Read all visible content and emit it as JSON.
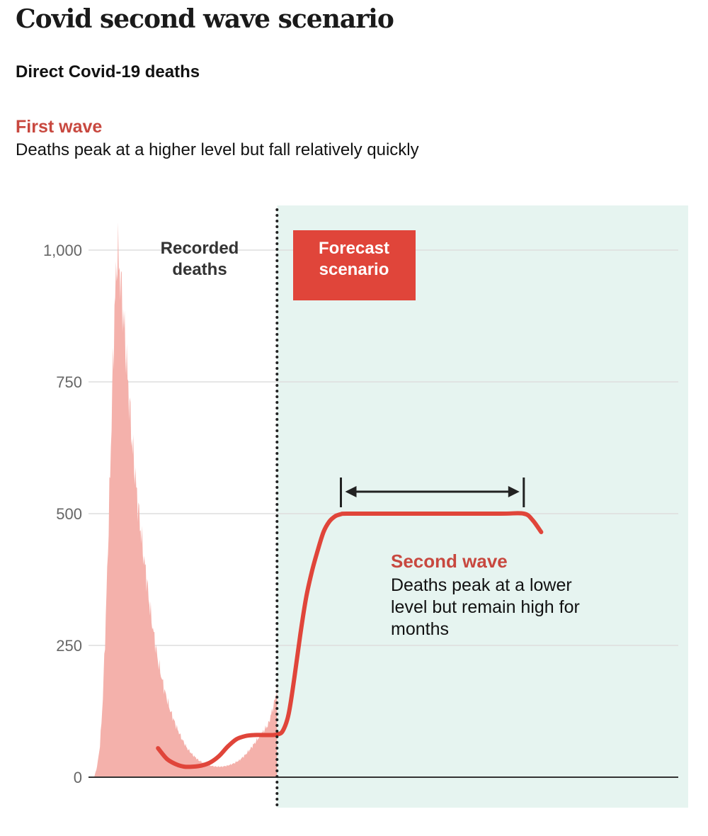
{
  "header": {
    "title": "Covid second wave scenario",
    "subtitle": "Direct Covid-19 deaths"
  },
  "first_wave": {
    "label": "First wave",
    "text": "Deaths peak at a higher level but fall relatively quickly"
  },
  "annotations": {
    "recorded": [
      "Recorded",
      "deaths"
    ],
    "forecast": [
      "Forecast",
      "scenario"
    ],
    "second_wave_label": "Second wave",
    "second_wave_text": [
      "Deaths peak at a lower",
      "level but remain high for",
      "months"
    ]
  },
  "colors": {
    "recorded_fill": "#f4b1ab",
    "forecast_line": "#e0453a",
    "forecast_box": "#e0453a",
    "forecast_bg": "#e6f4f0",
    "second_wave_label": "#c8483f",
    "gridline": "#dddddd",
    "axis": "#333333"
  },
  "chart_data": {
    "type": "area",
    "title": "Direct Covid-19 deaths",
    "ylim": [
      0,
      1000
    ],
    "y_ticks": [
      0,
      250,
      500,
      750,
      1000
    ],
    "y_tick_labels": [
      "0",
      "250",
      "500",
      "750",
      "1,000"
    ],
    "grid": true,
    "x_units": "days since start of record (x axis unlabeled)",
    "forecast_start_x": 126,
    "series": [
      {
        "name": "Recorded deaths",
        "type": "area",
        "x": [
          0,
          2,
          4,
          6,
          8,
          10,
          12,
          14,
          16,
          18,
          20,
          22,
          24,
          26,
          28,
          30,
          32,
          34,
          36,
          38,
          40,
          44,
          48,
          52,
          56,
          60,
          64,
          68,
          72,
          76,
          80,
          84,
          88,
          92,
          96,
          100,
          104,
          108,
          112,
          116,
          120,
          124,
          126
        ],
        "values": [
          0,
          20,
          60,
          150,
          300,
          480,
          680,
          880,
          1000,
          950,
          880,
          800,
          720,
          640,
          580,
          520,
          470,
          420,
          380,
          330,
          290,
          220,
          170,
          130,
          100,
          75,
          55,
          42,
          32,
          26,
          22,
          20,
          20,
          22,
          26,
          32,
          42,
          55,
          70,
          85,
          100,
          140,
          170
        ]
      },
      {
        "name": "Forecast scenario",
        "type": "line",
        "x": [
          44,
          50,
          56,
          62,
          68,
          74,
          80,
          86,
          92,
          98,
          104,
          110,
          116,
          122,
          126,
          130,
          134,
          138,
          142,
          146,
          150,
          154,
          158,
          162,
          166,
          170,
          174,
          200,
          240,
          280,
          296,
          302,
          308
        ],
        "values": [
          55,
          35,
          25,
          20,
          20,
          22,
          28,
          40,
          58,
          72,
          78,
          80,
          80,
          80,
          81,
          88,
          120,
          190,
          270,
          340,
          390,
          430,
          465,
          485,
          495,
          499,
          500,
          500,
          500,
          500,
          500,
          488,
          465
        ]
      }
    ],
    "second_wave_plateau": {
      "value": 500,
      "x_start": 170,
      "x_end": 296
    }
  }
}
